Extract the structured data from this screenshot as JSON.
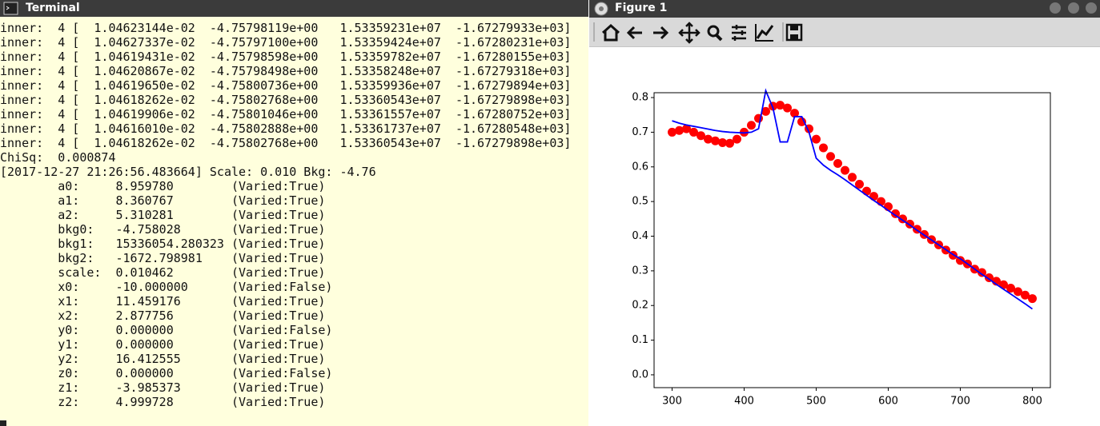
{
  "terminal": {
    "title": "Terminal",
    "lines": [
      "inner:  4 [  1.04623144e-02  -4.75798119e+00   1.53359231e+07  -1.67279933e+03]",
      "inner:  4 [  1.04627337e-02  -4.75797100e+00   1.53359424e+07  -1.67280231e+03]",
      "inner:  4 [  1.04619431e-02  -4.75798598e+00   1.53359782e+07  -1.67280155e+03]",
      "inner:  4 [  1.04620867e-02  -4.75798498e+00   1.53358248e+07  -1.67279318e+03]",
      "inner:  4 [  1.04619650e-02  -4.75800736e+00   1.53359936e+07  -1.67279894e+03]",
      "inner:  4 [  1.04618262e-02  -4.75802768e+00   1.53360543e+07  -1.67279898e+03]",
      "inner:  4 [  1.04619906e-02  -4.75801046e+00   1.53361557e+07  -1.67280752e+03]",
      "inner:  4 [  1.04616010e-02  -4.75802888e+00   1.53361737e+07  -1.67280548e+03]",
      "inner:  4 [  1.04618262e-02  -4.75802768e+00   1.53360543e+07  -1.67279898e+03]",
      "ChiSq:  0.000874",
      "[2017-12-27 21:26:56.483664] Scale: 0.010 Bkg: -4.76",
      "        a0:     8.959780        (Varied:True)",
      "        a1:     8.360767        (Varied:True)",
      "        a2:     5.310281        (Varied:True)",
      "        bkg0:   -4.758028       (Varied:True)",
      "        bkg1:   15336054.280323 (Varied:True)",
      "        bkg2:   -1672.798981    (Varied:True)",
      "        scale:  0.010462        (Varied:True)",
      "        x0:     -10.000000      (Varied:False)",
      "        x1:     11.459176       (Varied:True)",
      "        x2:     2.877756        (Varied:True)",
      "        y0:     0.000000        (Varied:False)",
      "        y1:     0.000000        (Varied:True)",
      "        y2:     16.412555       (Varied:True)",
      "        z0:     0.000000        (Varied:False)",
      "        z1:     -3.985373       (Varied:True)",
      "        z2:     4.999728        (Varied:True)"
    ]
  },
  "figure": {
    "title": "Figure 1"
  },
  "chart_data": {
    "type": "line",
    "x": [
      300,
      310,
      320,
      330,
      340,
      350,
      360,
      370,
      380,
      390,
      400,
      410,
      420,
      430,
      440,
      450,
      460,
      470,
      480,
      490,
      500,
      510,
      520,
      530,
      540,
      550,
      560,
      570,
      580,
      590,
      600,
      610,
      620,
      630,
      640,
      650,
      660,
      670,
      680,
      690,
      700,
      710,
      720,
      730,
      740,
      750,
      760,
      770,
      780,
      790,
      800
    ],
    "series": [
      {
        "color": "#ff0000",
        "mode": "markers",
        "values": [
          0.7,
          0.705,
          0.71,
          0.7,
          0.69,
          0.68,
          0.675,
          0.67,
          0.668,
          0.68,
          0.7,
          0.72,
          0.74,
          0.76,
          0.775,
          0.778,
          0.77,
          0.755,
          0.73,
          0.71,
          0.68,
          0.655,
          0.63,
          0.61,
          0.59,
          0.57,
          0.55,
          0.53,
          0.515,
          0.5,
          0.485,
          0.465,
          0.45,
          0.435,
          0.42,
          0.405,
          0.39,
          0.375,
          0.36,
          0.345,
          0.33,
          0.32,
          0.305,
          0.295,
          0.28,
          0.27,
          0.26,
          0.25,
          0.24,
          0.23,
          0.22
        ]
      },
      {
        "color": "#0000ff",
        "mode": "lines",
        "values": [
          0.733,
          0.726,
          0.721,
          0.717,
          0.713,
          0.709,
          0.705,
          0.702,
          0.7,
          0.699,
          0.698,
          0.7,
          0.71,
          0.82,
          0.77,
          0.672,
          0.672,
          0.745,
          0.745,
          0.7,
          0.625,
          0.605,
          0.59,
          0.577,
          0.563,
          0.548,
          0.533,
          0.518,
          0.503,
          0.489,
          0.474,
          0.46,
          0.446,
          0.432,
          0.417,
          0.403,
          0.389,
          0.375,
          0.361,
          0.347,
          0.335,
          0.32,
          0.305,
          0.29,
          0.276,
          0.261,
          0.247,
          0.233,
          0.219,
          0.205,
          0.19
        ]
      }
    ],
    "xlim": [
      275,
      825
    ],
    "xticks": [
      300,
      400,
      500,
      600,
      700,
      800
    ],
    "ylim": [
      -0.037,
      0.814
    ],
    "yticks": [
      {
        "value": 0,
        "label": "0.0"
      },
      0.1,
      0.2,
      0.3,
      0.4,
      0.5,
      0.6,
      0.7,
      0.8
    ],
    "grid": false
  }
}
